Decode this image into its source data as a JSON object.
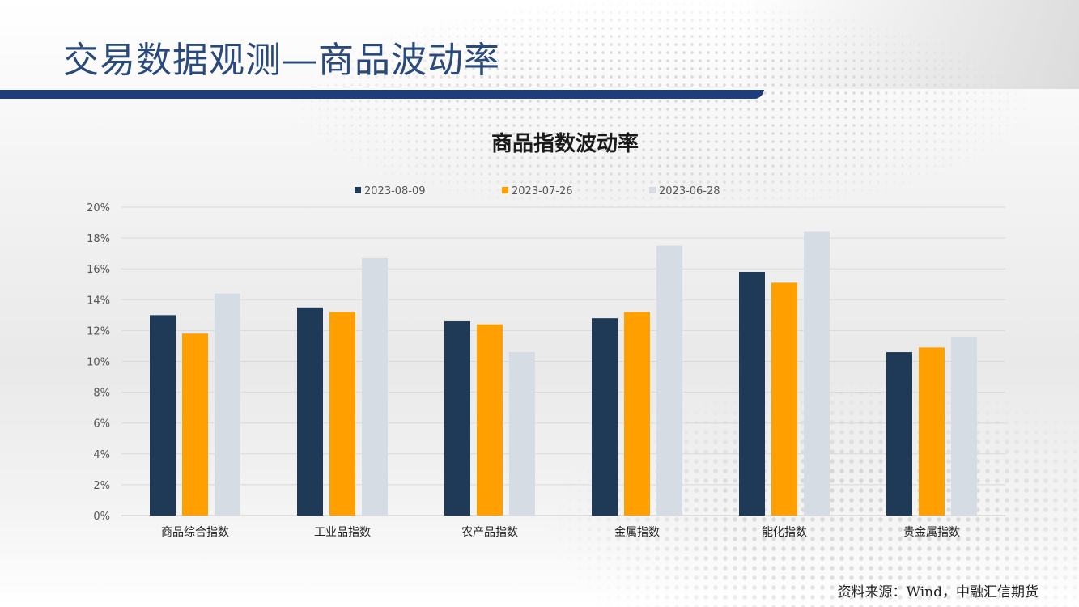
{
  "slide": {
    "title": "交易数据观测—商品波动率",
    "source": "资料来源：Wind，中融汇信期货"
  },
  "colors": {
    "title_bar": "#1f3d7a",
    "series_colors": [
      "#1f3a56",
      "#ffa000",
      "#d6dce4"
    ]
  },
  "chart_data": {
    "type": "bar",
    "title": "商品指数波动率",
    "categories": [
      "商品综合指数",
      "工业品指数",
      "农产品指数",
      "金属指数",
      "能化指数",
      "贵金属指数"
    ],
    "series": [
      {
        "name": "2023-08-09",
        "values": [
          13.0,
          13.5,
          12.6,
          12.8,
          15.8,
          10.6
        ]
      },
      {
        "name": "2023-07-26",
        "values": [
          11.8,
          13.2,
          12.4,
          13.2,
          15.1,
          10.9
        ]
      },
      {
        "name": "2023-06-28",
        "values": [
          14.4,
          16.7,
          10.6,
          17.5,
          18.4,
          11.6
        ]
      }
    ],
    "yticks": [
      "0%",
      "2%",
      "4%",
      "6%",
      "8%",
      "10%",
      "12%",
      "14%",
      "16%",
      "18%",
      "20%"
    ],
    "ylim": [
      0,
      20
    ],
    "y_unit": "%",
    "grid": true,
    "legend_position": "top"
  }
}
